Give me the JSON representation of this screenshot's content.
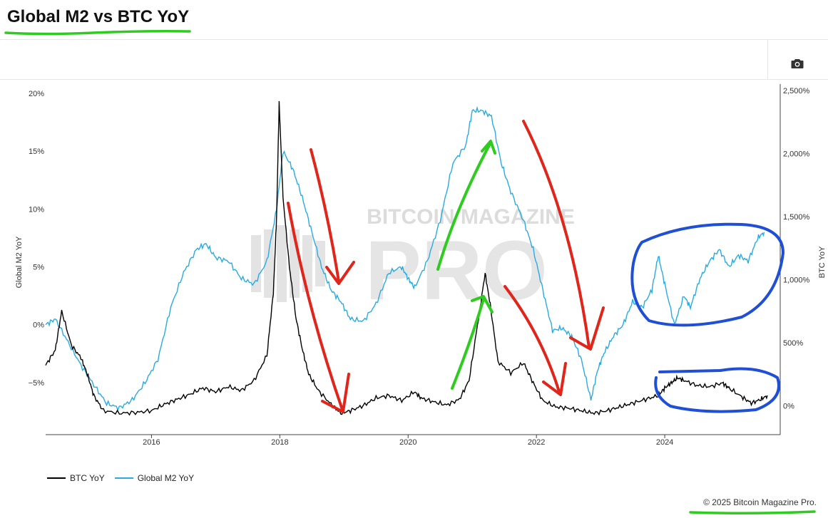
{
  "page": {
    "title": "Global M2 vs BTC YoY",
    "copyright": "© 2025 Bitcoin Magazine Pro."
  },
  "watermark": {
    "top": "BITCOIN MAGAZINE",
    "main": "PRO"
  },
  "icons": {
    "camera": "camera-icon"
  },
  "colors": {
    "btc_line": "#000000",
    "m2_line": "#29abe2",
    "annotation_green": "#2ecc1f",
    "annotation_red": "#e0251b",
    "annotation_blue": "#1f4fd6",
    "watermark": "#d9d9d9"
  },
  "chart_data": {
    "type": "line",
    "x_ticks": [
      "2016",
      "2018",
      "2020",
      "2022",
      "2024"
    ],
    "y_left_ticks": [
      "20%",
      "15%",
      "10%",
      "5%",
      "0%",
      "−5%"
    ],
    "y_right_ticks": [
      "2,500%",
      "2,000%",
      "1,500%",
      "1,000%",
      "500%",
      "0%"
    ],
    "y_left_label": "Global M2 YoY",
    "y_right_label": "BTC YoY",
    "x_range": [
      2014.35,
      2025.8
    ],
    "y_left_range": [
      -9.5,
      20.8
    ],
    "y_right_range": [
      -230,
      2550
    ],
    "legend_position": "bottom-left",
    "grid": false,
    "series": [
      {
        "name": "BTC YoY",
        "axis": "right",
        "color": "#000000",
        "points": [
          [
            2014.35,
            320
          ],
          [
            2014.5,
            440
          ],
          [
            2014.6,
            750
          ],
          [
            2014.75,
            480
          ],
          [
            2014.9,
            380
          ],
          [
            2015.0,
            250
          ],
          [
            2015.1,
            80
          ],
          [
            2015.25,
            -40
          ],
          [
            2015.5,
            -60
          ],
          [
            2015.75,
            -55
          ],
          [
            2016.0,
            -40
          ],
          [
            2016.2,
            10
          ],
          [
            2016.4,
            50
          ],
          [
            2016.6,
            90
          ],
          [
            2016.8,
            140
          ],
          [
            2017.0,
            110
          ],
          [
            2017.2,
            150
          ],
          [
            2017.4,
            120
          ],
          [
            2017.6,
            200
          ],
          [
            2017.8,
            400
          ],
          [
            2017.9,
            900
          ],
          [
            2017.95,
            1500
          ],
          [
            2017.99,
            2400
          ],
          [
            2018.05,
            1650
          ],
          [
            2018.15,
            1100
          ],
          [
            2018.25,
            700
          ],
          [
            2018.35,
            450
          ],
          [
            2018.45,
            250
          ],
          [
            2018.6,
            120
          ],
          [
            2018.8,
            10
          ],
          [
            2018.95,
            -60
          ],
          [
            2019.1,
            -40
          ],
          [
            2019.3,
            0
          ],
          [
            2019.5,
            60
          ],
          [
            2019.7,
            80
          ],
          [
            2019.9,
            40
          ],
          [
            2020.1,
            110
          ],
          [
            2020.2,
            60
          ],
          [
            2020.4,
            30
          ],
          [
            2020.6,
            5
          ],
          [
            2020.8,
            50
          ],
          [
            2020.95,
            200
          ],
          [
            2021.1,
            700
          ],
          [
            2021.2,
            1050
          ],
          [
            2021.28,
            800
          ],
          [
            2021.4,
            350
          ],
          [
            2021.6,
            260
          ],
          [
            2021.8,
            340
          ],
          [
            2021.95,
            180
          ],
          [
            2022.1,
            40
          ],
          [
            2022.3,
            -10
          ],
          [
            2022.5,
            -20
          ],
          [
            2022.7,
            -40
          ],
          [
            2022.9,
            -60
          ],
          [
            2023.1,
            -40
          ],
          [
            2023.3,
            -10
          ],
          [
            2023.5,
            20
          ],
          [
            2023.7,
            50
          ],
          [
            2023.9,
            80
          ],
          [
            2024.0,
            140
          ],
          [
            2024.1,
            180
          ],
          [
            2024.2,
            220
          ],
          [
            2024.3,
            200
          ],
          [
            2024.5,
            160
          ],
          [
            2024.7,
            150
          ],
          [
            2024.9,
            180
          ],
          [
            2025.0,
            140
          ],
          [
            2025.2,
            70
          ],
          [
            2025.35,
            20
          ],
          [
            2025.5,
            50
          ],
          [
            2025.6,
            80
          ]
        ]
      },
      {
        "name": "Global M2 YoY",
        "axis": "left",
        "color": "#29abe2",
        "points": [
          [
            2014.35,
            0.0
          ],
          [
            2014.5,
            0.5
          ],
          [
            2014.7,
            -1.5
          ],
          [
            2014.9,
            -3.5
          ],
          [
            2015.1,
            -5.2
          ],
          [
            2015.3,
            -6.8
          ],
          [
            2015.5,
            -7.2
          ],
          [
            2015.7,
            -6.5
          ],
          [
            2015.9,
            -5.0
          ],
          [
            2016.1,
            -3.0
          ],
          [
            2016.3,
            1.5
          ],
          [
            2016.5,
            4.5
          ],
          [
            2016.7,
            6.5
          ],
          [
            2016.85,
            7.0
          ],
          [
            2017.0,
            5.8
          ],
          [
            2017.2,
            5.5
          ],
          [
            2017.4,
            4.0
          ],
          [
            2017.6,
            3.5
          ],
          [
            2017.8,
            5.5
          ],
          [
            2017.95,
            10.0
          ],
          [
            2018.05,
            15.0
          ],
          [
            2018.2,
            13.5
          ],
          [
            2018.35,
            11.0
          ],
          [
            2018.5,
            8.0
          ],
          [
            2018.65,
            5.0
          ],
          [
            2018.8,
            3.0
          ],
          [
            2018.95,
            2.0
          ],
          [
            2019.1,
            0.5
          ],
          [
            2019.3,
            0.3
          ],
          [
            2019.5,
            1.8
          ],
          [
            2019.7,
            4.5
          ],
          [
            2019.9,
            5.0
          ],
          [
            2020.0,
            4.0
          ],
          [
            2020.1,
            3.2
          ],
          [
            2020.3,
            5.5
          ],
          [
            2020.5,
            9.0
          ],
          [
            2020.7,
            14.0
          ],
          [
            2020.9,
            15.5
          ],
          [
            2021.0,
            18.5
          ],
          [
            2021.15,
            18.5
          ],
          [
            2021.3,
            18.0
          ],
          [
            2021.45,
            14.0
          ],
          [
            2021.6,
            11.5
          ],
          [
            2021.8,
            9.0
          ],
          [
            2021.95,
            6.5
          ],
          [
            2022.1,
            3.0
          ],
          [
            2022.25,
            -0.5
          ],
          [
            2022.4,
            -0.3
          ],
          [
            2022.55,
            -1.0
          ],
          [
            2022.7,
            -3.0
          ],
          [
            2022.85,
            -6.5
          ],
          [
            2022.95,
            -4.0
          ],
          [
            2023.05,
            -2.5
          ],
          [
            2023.2,
            -1.0
          ],
          [
            2023.35,
            0.0
          ],
          [
            2023.5,
            2.0
          ],
          [
            2023.65,
            1.5
          ],
          [
            2023.8,
            3.0
          ],
          [
            2023.9,
            6.0
          ],
          [
            2024.0,
            3.5
          ],
          [
            2024.15,
            0.0
          ],
          [
            2024.3,
            2.5
          ],
          [
            2024.4,
            1.5
          ],
          [
            2024.55,
            4.0
          ],
          [
            2024.7,
            5.5
          ],
          [
            2024.85,
            6.5
          ],
          [
            2025.0,
            5.0
          ],
          [
            2025.15,
            6.0
          ],
          [
            2025.3,
            5.5
          ],
          [
            2025.45,
            7.5
          ],
          [
            2025.55,
            8.0
          ]
        ]
      }
    ]
  },
  "legend": [
    {
      "label": "BTC YoY",
      "color": "#000000"
    },
    {
      "label": "Global M2 YoY",
      "color": "#29abe2"
    }
  ]
}
